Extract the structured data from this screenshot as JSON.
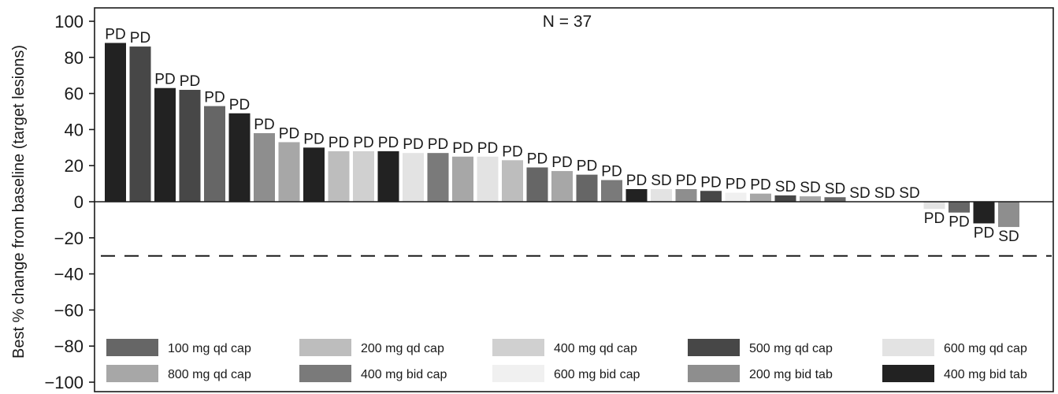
{
  "chart_data": {
    "type": "bar",
    "title": "",
    "annotation": "N = 37",
    "xlabel": "",
    "ylabel": "Best % change from baseline (target lesions)",
    "ylim": [
      -100,
      100
    ],
    "yticks": [
      100,
      80,
      60,
      40,
      20,
      0,
      -20,
      -40,
      -60,
      -80,
      -100
    ],
    "ytick_labels": [
      "100",
      "80",
      "60",
      "40",
      "20",
      "0",
      "−20",
      "−40",
      "−60",
      "−80",
      "−100"
    ],
    "reference_line": {
      "value": -30,
      "style": "dashed"
    },
    "grid": false,
    "legend_position": "bottom",
    "groups": [
      {
        "name": "100 mg qd cap",
        "color": "#666666"
      },
      {
        "name": "200 mg qd cap",
        "color": "#bdbdbd"
      },
      {
        "name": "400 mg qd cap",
        "color": "#d0d0d0"
      },
      {
        "name": "500 mg qd cap",
        "color": "#474747"
      },
      {
        "name": "600 mg qd cap",
        "color": "#e3e3e3"
      },
      {
        "name": "800 mg qd cap",
        "color": "#a7a7a7"
      },
      {
        "name": "400 mg bid cap",
        "color": "#7a7a7a"
      },
      {
        "name": "600 mg bid cap",
        "color": "#f0f0f0"
      },
      {
        "name": "200 mg bid tab",
        "color": "#8e8e8e"
      },
      {
        "name": "400 mg bid tab",
        "color": "#222222"
      }
    ],
    "bars": [
      {
        "value": 88,
        "label": "PD",
        "group": "400 mg bid tab"
      },
      {
        "value": 86,
        "label": "PD",
        "group": "500 mg qd cap"
      },
      {
        "value": 63,
        "label": "PD",
        "group": "400 mg bid tab"
      },
      {
        "value": 62,
        "label": "PD",
        "group": "500 mg qd cap"
      },
      {
        "value": 53,
        "label": "PD",
        "group": "100 mg qd cap"
      },
      {
        "value": 49,
        "label": "PD",
        "group": "400 mg bid tab"
      },
      {
        "value": 38,
        "label": "PD",
        "group": "200 mg bid tab"
      },
      {
        "value": 33,
        "label": "PD",
        "group": "800 mg qd cap"
      },
      {
        "value": 30,
        "label": "PD",
        "group": "400 mg bid tab"
      },
      {
        "value": 28,
        "label": "PD",
        "group": "200 mg qd cap"
      },
      {
        "value": 28,
        "label": "PD",
        "group": "400 mg qd cap"
      },
      {
        "value": 28,
        "label": "PD",
        "group": "400 mg bid tab"
      },
      {
        "value": 27,
        "label": "PD",
        "group": "600 mg qd cap"
      },
      {
        "value": 27,
        "label": "PD",
        "group": "400 mg bid cap"
      },
      {
        "value": 25,
        "label": "PD",
        "group": "800 mg qd cap"
      },
      {
        "value": 25,
        "label": "PD",
        "group": "600 mg qd cap"
      },
      {
        "value": 23,
        "label": "PD",
        "group": "200 mg qd cap"
      },
      {
        "value": 19,
        "label": "PD",
        "group": "100 mg qd cap"
      },
      {
        "value": 17,
        "label": "PD",
        "group": "800 mg qd cap"
      },
      {
        "value": 15,
        "label": "PD",
        "group": "100 mg qd cap"
      },
      {
        "value": 12,
        "label": "PD",
        "group": "400 mg bid cap"
      },
      {
        "value": 7,
        "label": "PD",
        "group": "400 mg bid tab"
      },
      {
        "value": 7,
        "label": "SD",
        "group": "600 mg qd cap"
      },
      {
        "value": 7,
        "label": "PD",
        "group": "200 mg bid tab"
      },
      {
        "value": 6,
        "label": "PD",
        "group": "500 mg qd cap"
      },
      {
        "value": 5,
        "label": "PD",
        "group": "600 mg bid cap"
      },
      {
        "value": 4.5,
        "label": "PD",
        "group": "800 mg qd cap"
      },
      {
        "value": 3.5,
        "label": "SD",
        "group": "500 mg qd cap"
      },
      {
        "value": 3,
        "label": "SD",
        "group": "800 mg qd cap"
      },
      {
        "value": 2.5,
        "label": "SD",
        "group": "100 mg qd cap"
      },
      {
        "value": 0,
        "label": "SD",
        "group": "600 mg bid cap"
      },
      {
        "value": 0,
        "label": "SD",
        "group": "600 mg bid cap"
      },
      {
        "value": 0,
        "label": "SD",
        "group": "600 mg bid cap"
      },
      {
        "value": -4,
        "label": "PD",
        "group": "600 mg qd cap"
      },
      {
        "value": -6,
        "label": "PD",
        "group": "100 mg qd cap"
      },
      {
        "value": -12,
        "label": "PD",
        "group": "400 mg bid tab"
      },
      {
        "value": -14,
        "label": "SD",
        "group": "200 mg bid tab"
      }
    ]
  }
}
